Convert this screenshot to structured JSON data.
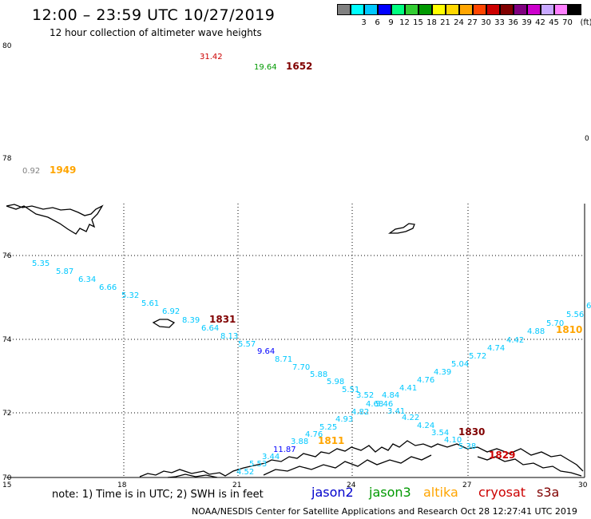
{
  "header": {
    "title": "12:00 – 23:59 UTC 10/27/2019",
    "subtitle": "12 hour collection of altimeter wave heights"
  },
  "color_scale": {
    "unit_label": "(ft)",
    "bins": [
      {
        "label": "",
        "color": "#808080"
      },
      {
        "label": "3",
        "color": "#00ffff"
      },
      {
        "label": "6",
        "color": "#00c8ff"
      },
      {
        "label": "9",
        "color": "#0000ff"
      },
      {
        "label": "12",
        "color": "#00ff7f"
      },
      {
        "label": "15",
        "color": "#32cd32"
      },
      {
        "label": "18",
        "color": "#009900"
      },
      {
        "label": "21",
        "color": "#ffff00"
      },
      {
        "label": "24",
        "color": "#ffd700"
      },
      {
        "label": "27",
        "color": "#ffa500"
      },
      {
        "label": "30",
        "color": "#ff4500"
      },
      {
        "label": "33",
        "color": "#cc0000"
      },
      {
        "label": "36",
        "color": "#800000"
      },
      {
        "label": "39",
        "color": "#800080"
      },
      {
        "label": "42",
        "color": "#cc00cc"
      },
      {
        "label": "45",
        "color": "#c8a8ff"
      },
      {
        "label": "70",
        "color": "#ff80ff"
      },
      {
        "label": "",
        "color": "#000000"
      }
    ]
  },
  "axes": {
    "lat_labels": [
      "80",
      "78",
      "76",
      "74",
      "72",
      "70"
    ],
    "lon_labels": [
      "15",
      "18",
      "21",
      "24",
      "27",
      "30"
    ],
    "corner_zero": "0"
  },
  "observations": [
    {
      "text": "31.42",
      "color": "#cc0000"
    },
    {
      "text": "19.64",
      "color": "#009900"
    },
    {
      "text": "1652",
      "color": "#800000",
      "bold": true
    },
    {
      "text": "0.92",
      "color": "#808080"
    },
    {
      "text": "1949",
      "color": "#ffa500",
      "bold": true
    },
    {
      "text": "5.35",
      "color": "#00c8ff"
    },
    {
      "text": "5.87",
      "color": "#00c8ff"
    },
    {
      "text": "6.34",
      "color": "#00c8ff"
    },
    {
      "text": "6.66",
      "color": "#00c8ff"
    },
    {
      "text": "5.32",
      "color": "#00c8ff"
    },
    {
      "text": "5.61",
      "color": "#00c8ff"
    },
    {
      "text": "6.92",
      "color": "#00c8ff"
    },
    {
      "text": "8.39",
      "color": "#00c8ff"
    },
    {
      "text": "1831",
      "color": "#800000",
      "bold": true
    },
    {
      "text": "6.64",
      "color": "#00c8ff"
    },
    {
      "text": "8.13",
      "color": "#00c8ff"
    },
    {
      "text": "5.57",
      "color": "#00c8ff"
    },
    {
      "text": "9.64",
      "color": "#0000ff"
    },
    {
      "text": "8.71",
      "color": "#00c8ff"
    },
    {
      "text": "7.70",
      "color": "#00c8ff"
    },
    {
      "text": "5.88",
      "color": "#00c8ff"
    },
    {
      "text": "5.98",
      "color": "#00c8ff"
    },
    {
      "text": "5.51",
      "color": "#00c8ff"
    },
    {
      "text": "3.52",
      "color": "#00c8ff"
    },
    {
      "text": "4.84",
      "color": "#00c8ff"
    },
    {
      "text": "4.68",
      "color": "#00c8ff"
    },
    {
      "text": "5.46",
      "color": "#00c8ff"
    },
    {
      "text": "4.82",
      "color": "#00c8ff"
    },
    {
      "text": "3.41",
      "color": "#00c8ff"
    },
    {
      "text": "4.93",
      "color": "#00c8ff"
    },
    {
      "text": "5.25",
      "color": "#00c8ff"
    },
    {
      "text": "4.76",
      "color": "#00c8ff"
    },
    {
      "text": "3.88",
      "color": "#00c8ff"
    },
    {
      "text": "1811",
      "color": "#ffa500",
      "bold": true
    },
    {
      "text": "11.87",
      "color": "#0000ff"
    },
    {
      "text": "3.44",
      "color": "#00c8ff"
    },
    {
      "text": "5.53",
      "color": "#00c8ff"
    },
    {
      "text": "4.52",
      "color": "#00c8ff"
    },
    {
      "text": "4.22",
      "color": "#00c8ff"
    },
    {
      "text": "4.24",
      "color": "#00c8ff"
    },
    {
      "text": "3.54",
      "color": "#00c8ff"
    },
    {
      "text": "4.10",
      "color": "#00c8ff"
    },
    {
      "text": "1830",
      "color": "#800000",
      "bold": true
    },
    {
      "text": "5.38",
      "color": "#00c8ff"
    },
    {
      "text": "1829",
      "color": "#cc0000",
      "bold": true
    },
    {
      "text": "4.41",
      "color": "#00c8ff"
    },
    {
      "text": "4.76",
      "color": "#00c8ff"
    },
    {
      "text": "4.39",
      "color": "#00c8ff"
    },
    {
      "text": "5.04",
      "color": "#00c8ff"
    },
    {
      "text": "5.72",
      "color": "#00c8ff"
    },
    {
      "text": "4.74",
      "color": "#00c8ff"
    },
    {
      "text": "4.42",
      "color": "#00c8ff"
    },
    {
      "text": "4.88",
      "color": "#00c8ff"
    },
    {
      "text": "5.70",
      "color": "#00c8ff"
    },
    {
      "text": "1810",
      "color": "#ffa500",
      "bold": true
    },
    {
      "text": "5.56",
      "color": "#00c8ff"
    },
    {
      "text": "6",
      "color": "#00c8ff"
    }
  ],
  "footer": {
    "note": "note:  1) Time is in UTC;  2) SWH is in feet",
    "legend": [
      {
        "label": "jason2",
        "color": "#0000cc"
      },
      {
        "label": "jason3",
        "color": "#009900"
      },
      {
        "label": "altika",
        "color": "#ffa500"
      },
      {
        "label": "cryosat",
        "color": "#cc0000"
      },
      {
        "label": "s3a",
        "color": "#800000"
      }
    ],
    "credit": "NOAA/NESDIS Center for Satellite Applications and Research     Oct 28 12:27:41 UTC 2019"
  }
}
